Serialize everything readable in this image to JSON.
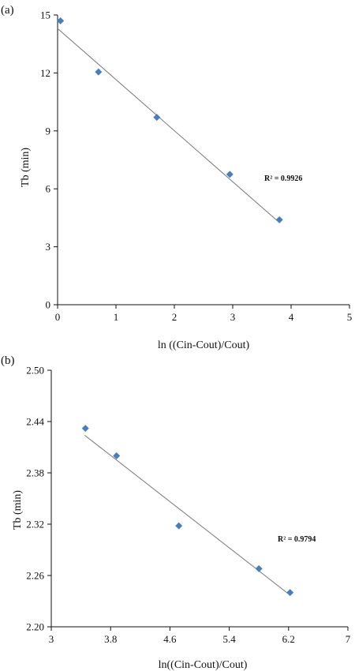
{
  "chart_data": [
    {
      "panel_label": "(a)",
      "type": "scatter",
      "xlabel": "ln ((Cin-Cout)/Cout)",
      "ylabel": "Tb (min)",
      "xlim": [
        0,
        5
      ],
      "ylim": [
        0,
        15
      ],
      "x_ticks": [
        "0",
        "1",
        "2",
        "3",
        "4",
        "5"
      ],
      "y_ticks": [
        "0",
        "3",
        "6",
        "9",
        "12",
        "15"
      ],
      "points": [
        {
          "x": 0.05,
          "y": 14.7
        },
        {
          "x": 0.7,
          "y": 12.05
        },
        {
          "x": 1.7,
          "y": 9.7
        },
        {
          "x": 2.95,
          "y": 6.75
        },
        {
          "x": 3.8,
          "y": 4.4
        }
      ],
      "trendline": [
        {
          "x": 0.0,
          "y": 14.3
        },
        {
          "x": 3.8,
          "y": 4.25
        }
      ],
      "annotation": "R² = 0.9926",
      "grid": false,
      "marker_color": "#4a7ebb",
      "line_color": "#777777"
    },
    {
      "panel_label": "(b)",
      "type": "scatter",
      "xlabel": "ln((Cin-Cout)/Cout)",
      "ylabel": "Tb (min)",
      "xlim": [
        3,
        7
      ],
      "ylim": [
        2.2,
        2.5
      ],
      "x_ticks": [
        "3",
        "3.8",
        "4.6",
        "5.4",
        "6.2",
        "7"
      ],
      "y_ticks": [
        "2.20",
        "2.26",
        "2.32",
        "2.38",
        "2.44",
        "2.50"
      ],
      "points": [
        {
          "x": 3.46,
          "y": 2.432
        },
        {
          "x": 3.88,
          "y": 2.4
        },
        {
          "x": 4.72,
          "y": 2.318
        },
        {
          "x": 5.8,
          "y": 2.268
        },
        {
          "x": 6.22,
          "y": 2.24
        }
      ],
      "trendline": [
        {
          "x": 3.45,
          "y": 2.424
        },
        {
          "x": 6.22,
          "y": 2.237
        }
      ],
      "annotation": "R² = 0.9794",
      "grid": false,
      "marker_color": "#4a7ebb",
      "line_color": "#777777"
    }
  ]
}
